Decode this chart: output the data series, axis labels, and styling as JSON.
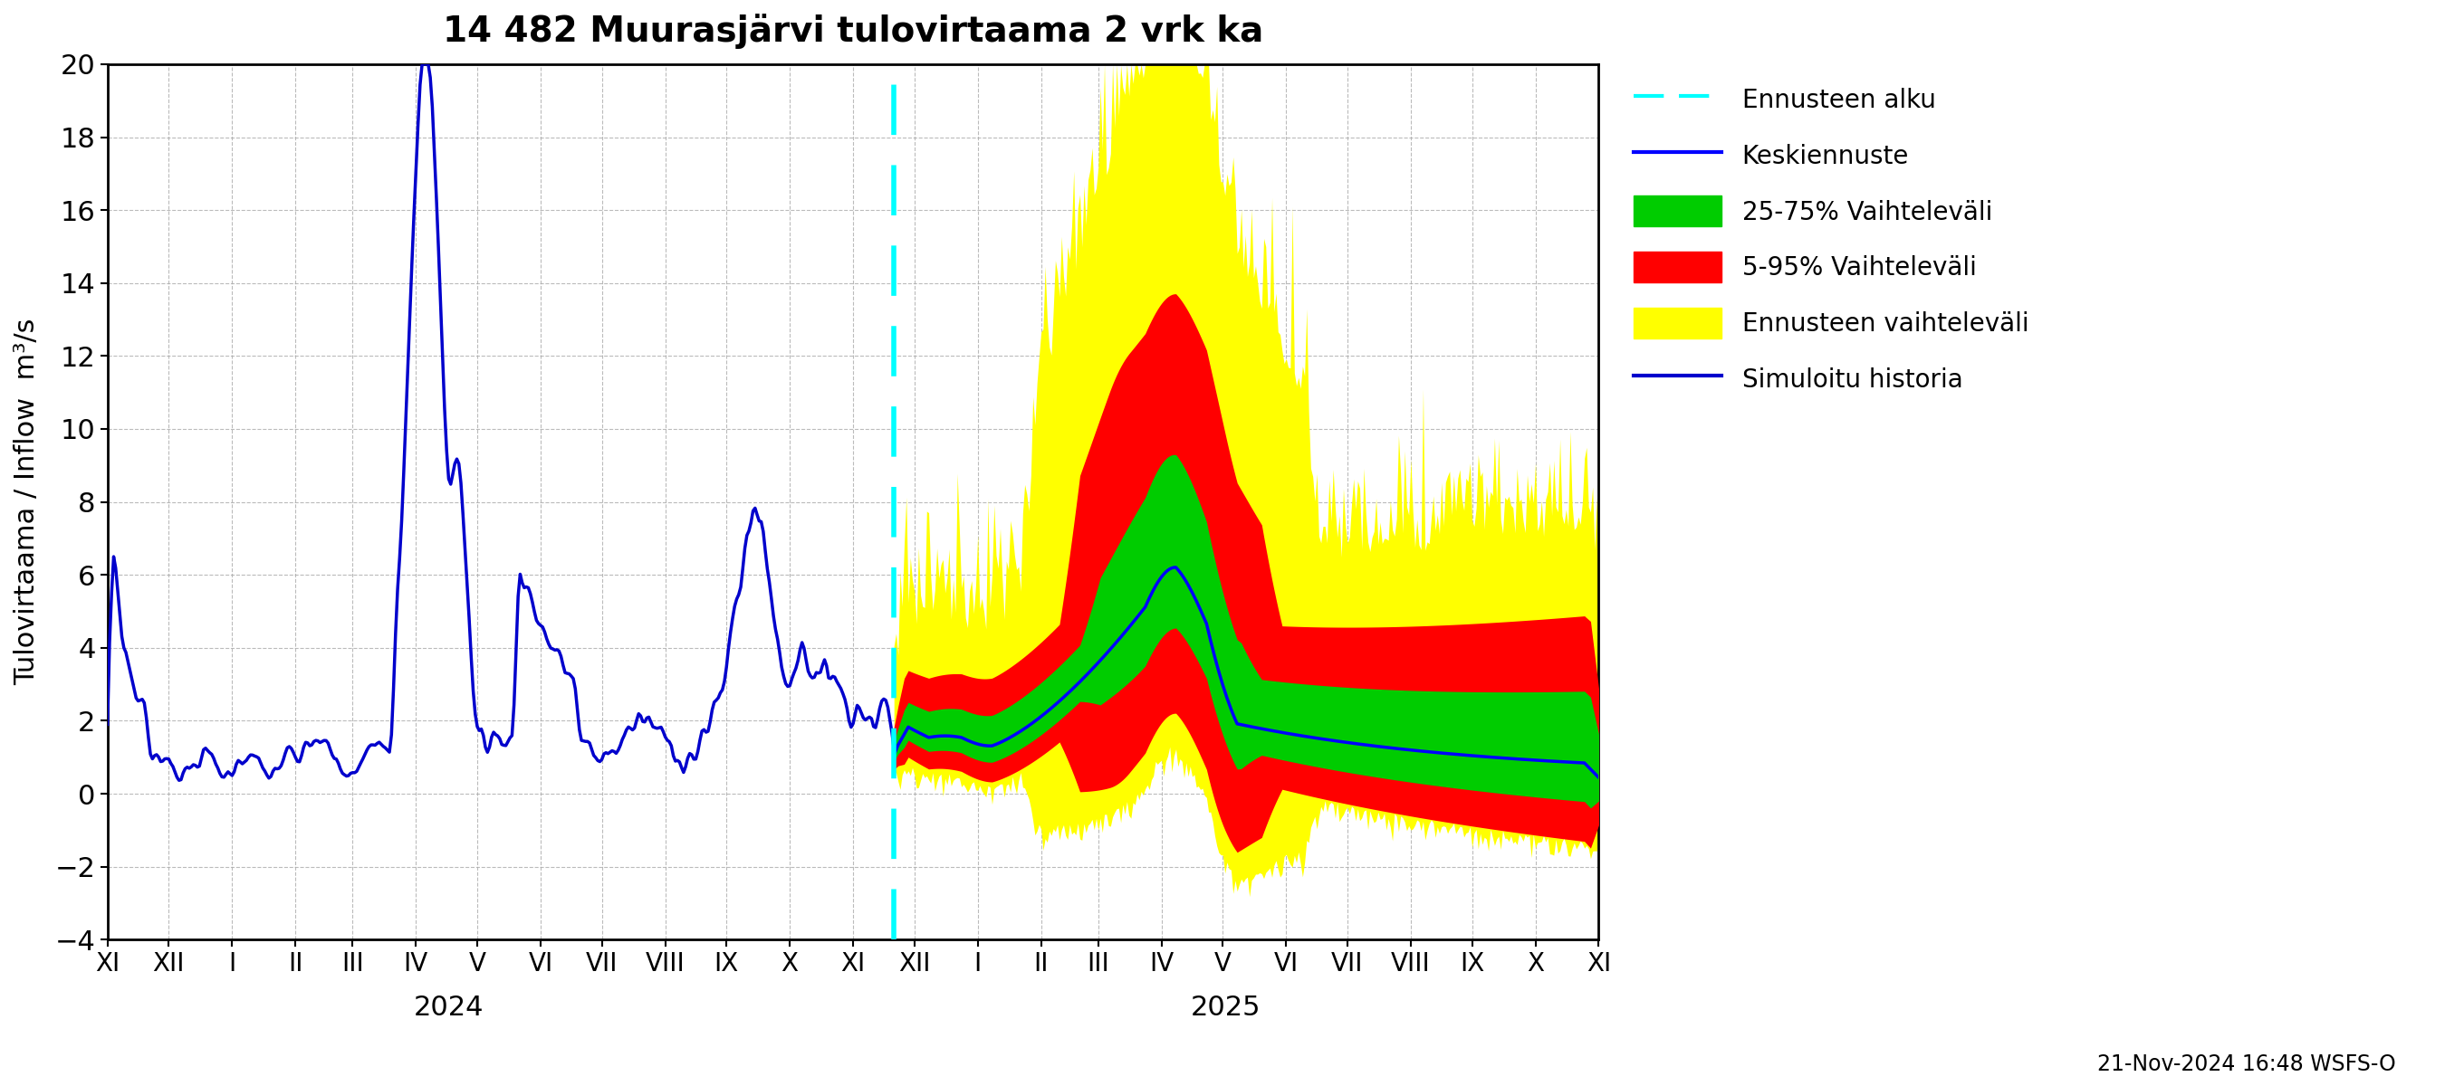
{
  "title": "14 482 Muurasjärvi tulovirtaama 2 vrk ka",
  "ylabel": "Tulovirtaama / Inflow  m³/s",
  "ylim": [
    -4,
    20
  ],
  "yticks": [
    -4,
    -2,
    0,
    2,
    4,
    6,
    8,
    10,
    12,
    14,
    16,
    18,
    20
  ],
  "footer_text": "21-Nov-2024 16:48 WSFS-O",
  "hist_color": "#0000cc",
  "sim_color": "#0000cc",
  "median_color": "#0000ff",
  "p25_75_color": "#00cc00",
  "p5_95_color": "#ff0000",
  "ens_color": "#ffff00",
  "forecast_line_color": "#00ffff",
  "legend_labels": [
    "Ennusteen alku",
    "Keskiennuste",
    "25-75% Vaihteleväli",
    "5-95% Vaihteleväli",
    "Ennusteen vaihteleväli",
    "Simuloitu historia"
  ],
  "background_color": "#ffffff",
  "grid_color": "#aaaaaa"
}
